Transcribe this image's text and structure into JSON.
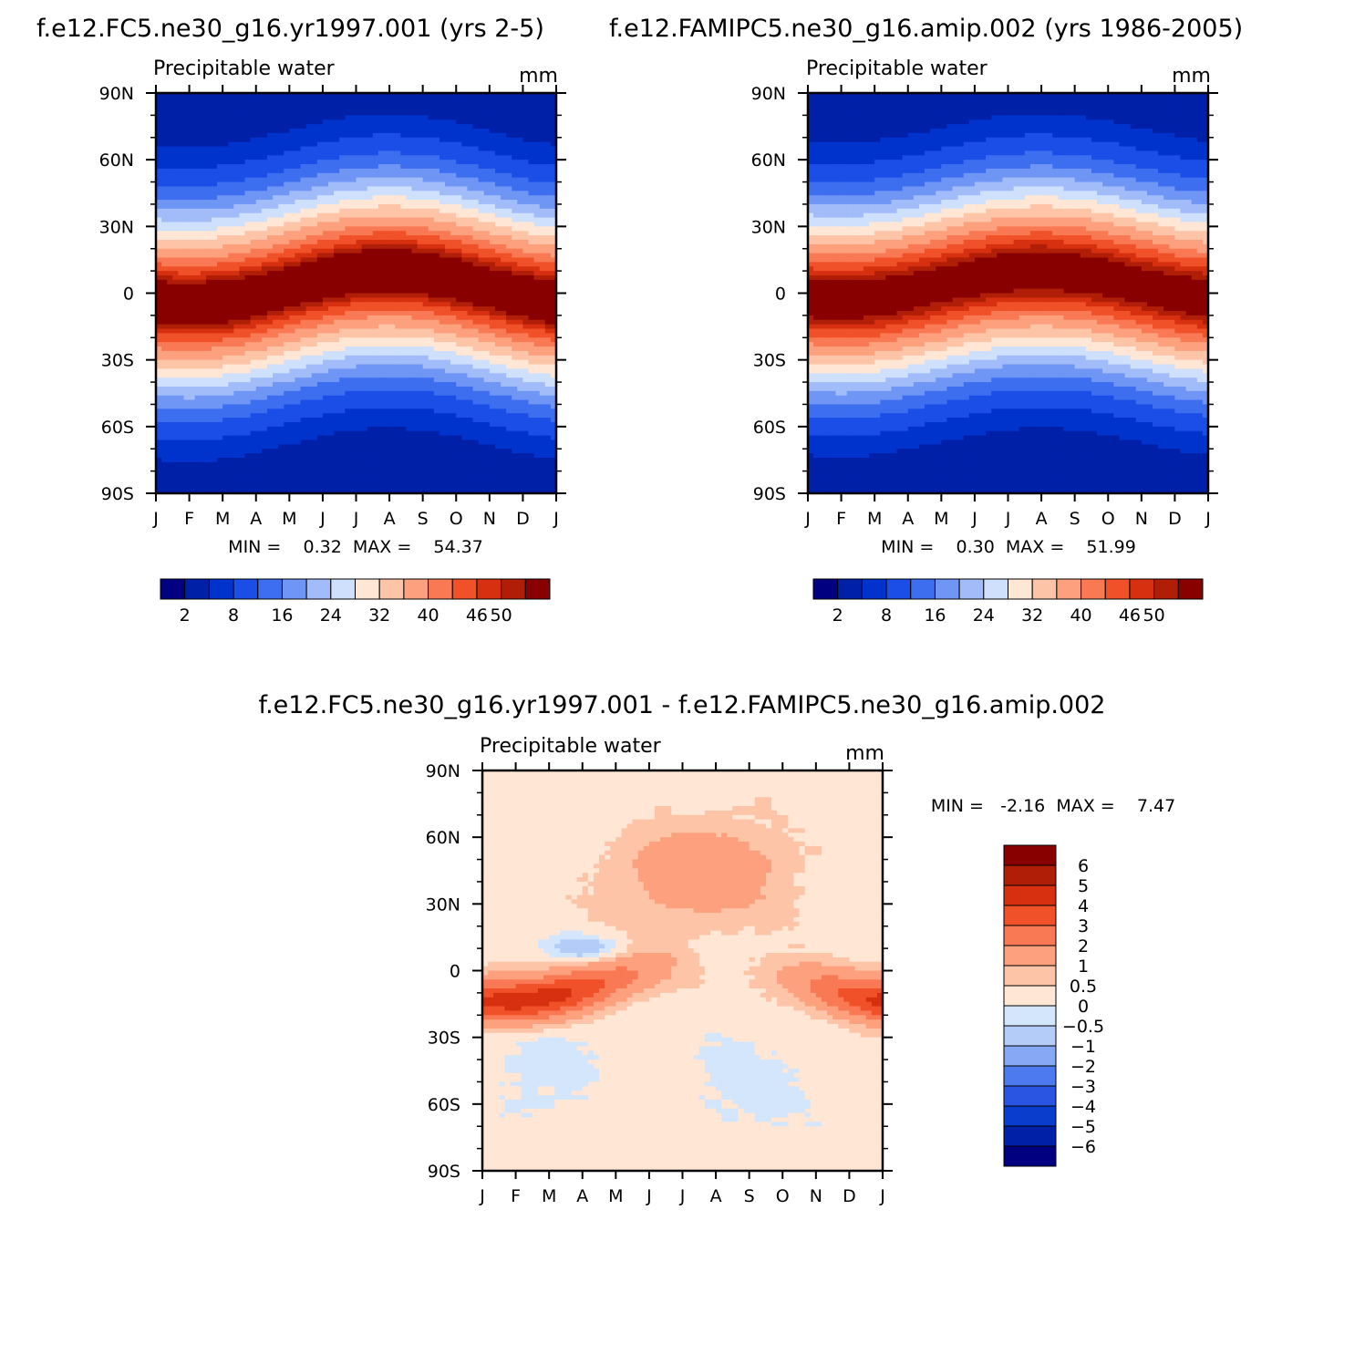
{
  "chart_data": [
    {
      "type": "heatmap",
      "title": "f.e12.FC5.ne30_g16.yr1997.001 (yrs 2-5)",
      "subtitle_left": "Precipitable water",
      "subtitle_right": "mm",
      "x_ticks": [
        "J",
        "F",
        "M",
        "A",
        "M",
        "J",
        "J",
        "A",
        "S",
        "O",
        "N",
        "D",
        "J"
      ],
      "y_ticks": [
        "90N",
        "60N",
        "30N",
        "0",
        "30S",
        "60S",
        "90S"
      ],
      "ylim": [
        -90,
        90
      ],
      "stats_label": "MIN =    0.32  MAX =    54.37",
      "colorbar_labels": [
        "2",
        "8",
        "16",
        "24",
        "32",
        "40",
        "46",
        "50"
      ],
      "field": "climatology",
      "peak": 54.37,
      "itcz": {
        "jan": -5,
        "aug": 10
      }
    },
    {
      "type": "heatmap",
      "title": "f.e12.FAMIPC5.ne30_g16.amip.002 (yrs 1986-2005)",
      "subtitle_left": "Precipitable water",
      "subtitle_right": "mm",
      "x_ticks": [
        "J",
        "F",
        "M",
        "A",
        "M",
        "J",
        "J",
        "A",
        "S",
        "O",
        "N",
        "D",
        "J"
      ],
      "y_ticks": [
        "90N",
        "60N",
        "30N",
        "0",
        "30S",
        "60S",
        "90S"
      ],
      "ylim": [
        -90,
        90
      ],
      "stats_label": "MIN =    0.30  MAX =    51.99",
      "colorbar_labels": [
        "2",
        "8",
        "16",
        "24",
        "32",
        "40",
        "46",
        "50"
      ],
      "field": "climatology",
      "peak": 51.99,
      "itcz": {
        "jan": -3,
        "aug": 10
      }
    },
    {
      "type": "heatmap",
      "title": "f.e12.FC5.ne30_g16.yr1997.001 - f.e12.FAMIPC5.ne30_g16.amip.002",
      "subtitle_left": "Precipitable water",
      "subtitle_right": "mm",
      "x_ticks": [
        "J",
        "F",
        "M",
        "A",
        "M",
        "J",
        "J",
        "A",
        "S",
        "O",
        "N",
        "D",
        "J"
      ],
      "y_ticks": [
        "90N",
        "60N",
        "30N",
        "0",
        "30S",
        "60S",
        "90S"
      ],
      "ylim": [
        -90,
        90
      ],
      "stats_label": "MIN =   -2.16  MAX =    7.47",
      "colorbar_labels": [
        "6",
        "5",
        "4",
        "3",
        "2",
        "1",
        "0.5",
        "0",
        "-0.5",
        "-1",
        "-2",
        "-3",
        "-4",
        "-5",
        "-6"
      ],
      "field": "difference"
    }
  ],
  "colors": {
    "abs_palette": [
      "#000080",
      "#0020a8",
      "#0033cc",
      "#1a4ee6",
      "#3d6ef0",
      "#6f95f5",
      "#a1bcf8",
      "#cfe0fc",
      "#ffe6d5",
      "#fec4a8",
      "#fca07e",
      "#f97955",
      "#f05128",
      "#d63011",
      "#b01e08",
      "#880000"
    ],
    "diff_palette": [
      "#880000",
      "#b01e08",
      "#d63011",
      "#f05128",
      "#f97955",
      "#fca07e",
      "#fec4a8",
      "#ffe6d5",
      "#d3e6fb",
      "#b3ccf8",
      "#86a8f5",
      "#4d7bef",
      "#2a55e2",
      "#0b3dcc",
      "#0020a8",
      "#000080"
    ]
  }
}
